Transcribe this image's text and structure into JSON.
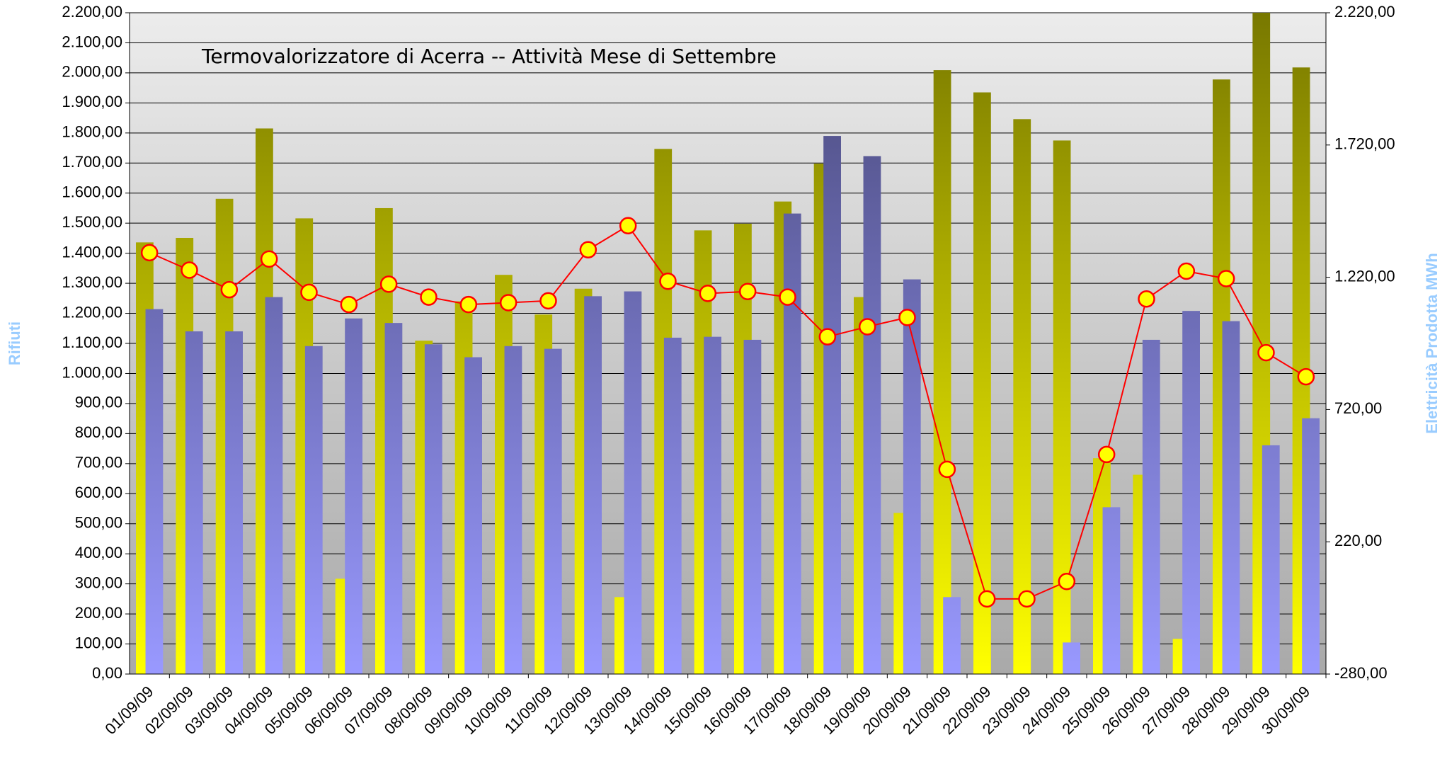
{
  "chart_data": {
    "type": "bar",
    "title": "Termovalorizzatore di Acerra -- Attività Mese di Settembre",
    "y_label": "Rifiuti",
    "y2_label": "Elettricità Prodotta MWh",
    "categories": [
      "01/09/09",
      "02/09/09",
      "03/09/09",
      "04/09/09",
      "05/09/09",
      "06/09/09",
      "07/09/09",
      "08/09/09",
      "09/09/09",
      "10/09/09",
      "11/09/09",
      "12/09/09",
      "13/09/09",
      "14/09/09",
      "15/09/09",
      "16/09/09",
      "17/09/09",
      "18/09/09",
      "19/09/09",
      "20/09/09",
      "21/09/09",
      "22/09/09",
      "23/09/09",
      "24/09/09",
      "25/09/09",
      "26/09/09",
      "27/09/09",
      "28/09/09",
      "29/09/09",
      "30/09/09"
    ],
    "series": [
      {
        "type": "bar",
        "color": "#ffff00",
        "values": [
          1436,
          1451,
          1581,
          1815,
          1516,
          317,
          1550,
          1109,
          1240,
          1328,
          1196,
          1282,
          256,
          1747,
          1476,
          1498,
          1572,
          1698,
          1254,
          536,
          2009,
          1935,
          1846,
          1775,
          718,
          663,
          117,
          1978,
          2200,
          2018
        ]
      },
      {
        "type": "bar",
        "color": "#9999ff",
        "values": [
          1214,
          1140,
          1140,
          1254,
          1091,
          1183,
          1168,
          1097,
          1054,
          1091,
          1082,
          1257,
          1273,
          1119,
          1122,
          1112,
          1532,
          1790,
          1723,
          1313,
          256,
          0,
          0,
          105,
          555,
          1112,
          1208,
          1174,
          761,
          851
        ]
      },
      {
        "type": "line",
        "axis": "y2",
        "color": "#ff0000",
        "marker_color": "#ffff00",
        "values": [
          1313,
          1247,
          1173,
          1289,
          1163,
          1117,
          1194,
          1145,
          1117,
          1124,
          1131,
          1324,
          1415,
          1205,
          1159,
          1166,
          1145,
          995,
          1033,
          1068,
          494,
          4,
          4,
          70,
          550,
          1138,
          1243,
          1215,
          935,
          844
        ]
      }
    ],
    "ylim": [
      0,
      2200
    ],
    "yticks": [
      {
        "value": 0,
        "label": "0,00"
      },
      {
        "value": 100,
        "label": "100,00"
      },
      {
        "value": 200,
        "label": "200,00"
      },
      {
        "value": 300,
        "label": "300,00"
      },
      {
        "value": 400,
        "label": "400,00"
      },
      {
        "value": 500,
        "label": "500,00"
      },
      {
        "value": 600,
        "label": "600,00"
      },
      {
        "value": 700,
        "label": "700,00"
      },
      {
        "value": 800,
        "label": "800,00"
      },
      {
        "value": 900,
        "label": "900,00"
      },
      {
        "value": 1000,
        "label": "1.000,00"
      },
      {
        "value": 1100,
        "label": "1.100,00"
      },
      {
        "value": 1200,
        "label": "1.200,00"
      },
      {
        "value": 1300,
        "label": "1.300,00"
      },
      {
        "value": 1400,
        "label": "1.400,00"
      },
      {
        "value": 1500,
        "label": "1.500,00"
      },
      {
        "value": 1600,
        "label": "1.600,00"
      },
      {
        "value": 1700,
        "label": "1.700,00"
      },
      {
        "value": 1800,
        "label": "1.800,00"
      },
      {
        "value": 1900,
        "label": "1.900,00"
      },
      {
        "value": 2000,
        "label": "2.000,00"
      },
      {
        "value": 2100,
        "label": "2.100,00"
      },
      {
        "value": 2200,
        "label": "2.200,00"
      }
    ],
    "y2lim": [
      -280,
      2220
    ],
    "y2ticks": [
      {
        "value": -280,
        "label": "-280,00"
      },
      {
        "value": 220,
        "label": "220,00"
      },
      {
        "value": 720,
        "label": "720,00"
      },
      {
        "value": 1220,
        "label": "1.220,00"
      },
      {
        "value": 1720,
        "label": "1.720,00"
      },
      {
        "value": 2220,
        "label": "2.220,00"
      }
    ],
    "grid": true
  }
}
